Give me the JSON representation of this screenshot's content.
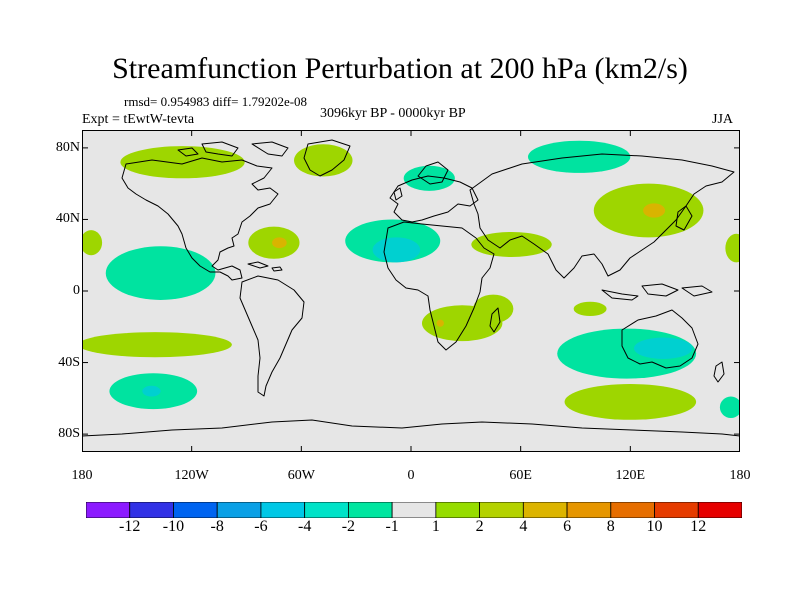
{
  "title": "Streamfunction Perturbation at 200 hPa (km2/s)",
  "stats": "rmsd= 0.954983 diff= 1.79202e-08",
  "experiment": "Expt = tEwtW-tevta",
  "period": "3096kyr BP - 0000kyr BP",
  "season": "JJA",
  "map": {
    "projection": "cylindrical equidistant",
    "lon_range": [
      -180,
      180
    ],
    "lat_range": [
      -90,
      90
    ],
    "background_color": "#e6e6e6",
    "coast_color": "#000000",
    "y_ticks": [
      {
        "lat": 80,
        "label": "80N"
      },
      {
        "lat": 40,
        "label": "40N"
      },
      {
        "lat": 0,
        "label": "0"
      },
      {
        "lat": -40,
        "label": "40S"
      },
      {
        "lat": -80,
        "label": "80S"
      }
    ],
    "x_ticks": [
      {
        "lon": -180,
        "label": "180"
      },
      {
        "lon": -120,
        "label": "120W"
      },
      {
        "lon": -60,
        "label": "60W"
      },
      {
        "lon": 0,
        "label": "0"
      },
      {
        "lon": 60,
        "label": "60E"
      },
      {
        "lon": 120,
        "label": "120E"
      },
      {
        "lon": 180,
        "label": "180"
      }
    ],
    "anomalies": [
      {
        "lon": -125,
        "lat": 72,
        "rx": 34,
        "ry": 9,
        "color": "#9ed600"
      },
      {
        "lon": -48,
        "lat": 73,
        "rx": 16,
        "ry": 9,
        "color": "#9ed600"
      },
      {
        "lon": 10,
        "lat": 63,
        "rx": 14,
        "ry": 7,
        "color": "#00e3a0"
      },
      {
        "lon": 92,
        "lat": 75,
        "rx": 28,
        "ry": 9,
        "color": "#00e3a0"
      },
      {
        "lon": 130,
        "lat": 45,
        "rx": 30,
        "ry": 15,
        "color": "#9ed600"
      },
      {
        "lon": 133,
        "lat": 45,
        "rx": 6,
        "ry": 4,
        "color": "#d9b400"
      },
      {
        "lon": 55,
        "lat": 26,
        "rx": 22,
        "ry": 7,
        "color": "#9ed600"
      },
      {
        "lon": -10,
        "lat": 28,
        "rx": 26,
        "ry": 12,
        "color": "#00e3a0"
      },
      {
        "lon": -8,
        "lat": 23,
        "rx": 13,
        "ry": 7,
        "color": "#00d0d0"
      },
      {
        "lon": -75,
        "lat": 27,
        "rx": 14,
        "ry": 9,
        "color": "#9ed600"
      },
      {
        "lon": -72,
        "lat": 27,
        "rx": 4,
        "ry": 3,
        "color": "#d9b400"
      },
      {
        "lon": -137,
        "lat": 10,
        "rx": 30,
        "ry": 15,
        "color": "#00e3a0"
      },
      {
        "lon": -175,
        "lat": 27,
        "rx": 6,
        "ry": 7,
        "color": "#9ed600"
      },
      {
        "lon": 178,
        "lat": 24,
        "rx": 6,
        "ry": 8,
        "color": "#9ed600"
      },
      {
        "lon": -140,
        "lat": -30,
        "rx": 42,
        "ry": 7,
        "color": "#9ed600"
      },
      {
        "lon": -141,
        "lat": -56,
        "rx": 24,
        "ry": 10,
        "color": "#00e3a0"
      },
      {
        "lon": -142,
        "lat": -56,
        "rx": 5,
        "ry": 3,
        "color": "#00d0d0"
      },
      {
        "lon": 28,
        "lat": -18,
        "rx": 22,
        "ry": 10,
        "color": "#9ed600"
      },
      {
        "lon": 16,
        "lat": -18,
        "rx": 2,
        "ry": 2,
        "color": "#d9b400"
      },
      {
        "lon": 45,
        "lat": -10,
        "rx": 11,
        "ry": 8,
        "color": "#9ed600"
      },
      {
        "lon": 118,
        "lat": -35,
        "rx": 38,
        "ry": 14,
        "color": "#00e3a0"
      },
      {
        "lon": 138,
        "lat": -32,
        "rx": 16,
        "ry": 6,
        "color": "#00d0d0"
      },
      {
        "lon": 98,
        "lat": -10,
        "rx": 9,
        "ry": 4,
        "color": "#9ed600"
      },
      {
        "lon": 120,
        "lat": -62,
        "rx": 36,
        "ry": 10,
        "color": "#9ed600"
      },
      {
        "lon": 175,
        "lat": -65,
        "rx": 6,
        "ry": 6,
        "color": "#00e3a0"
      }
    ]
  },
  "colorbar": {
    "colors": [
      "#8c1aff",
      "#3232e6",
      "#0064f0",
      "#0aa0e6",
      "#00c8e6",
      "#00e3c8",
      "#00e6a0",
      "#e6e6e6",
      "#96dc00",
      "#b4d200",
      "#dcb400",
      "#e69600",
      "#e66e00",
      "#e63c00",
      "#e60000"
    ],
    "labels": [
      "-12",
      "-10",
      "-8",
      "-6",
      "-4",
      "-2",
      "-1",
      "1",
      "2",
      "4",
      "6",
      "8",
      "10",
      "12"
    ]
  }
}
